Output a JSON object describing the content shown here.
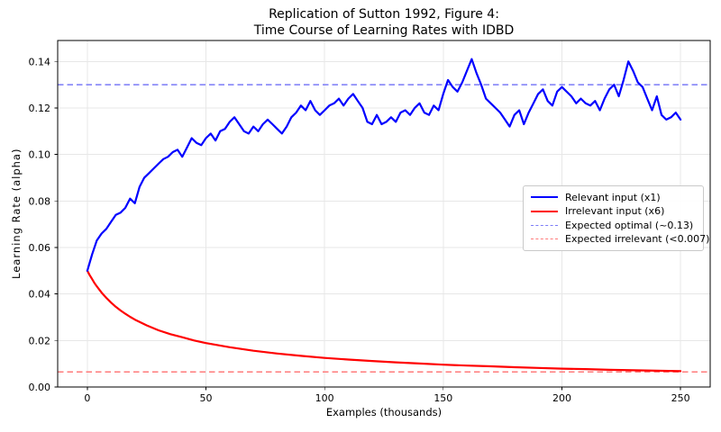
{
  "figure": {
    "title": "Replication of Sutton 1992, Figure 4:\nTime Course of Learning Rates with IDBD",
    "xlabel": "Examples (thousands)",
    "ylabel": "Learning Rate (alpha)"
  },
  "chart_data": {
    "type": "line",
    "title": "Replication of Sutton 1992, Figure 4: Time Course of Learning Rates with IDBD",
    "xlabel": "Examples (thousands)",
    "ylabel": "Learning Rate (alpha)",
    "xlim": [
      -12.5,
      262.5
    ],
    "ylim": [
      0,
      0.149
    ],
    "x_ticks": [
      0,
      50,
      100,
      150,
      200,
      250
    ],
    "y_ticks": [
      0.0,
      0.02,
      0.04,
      0.06,
      0.08,
      0.1,
      0.12,
      0.14
    ],
    "grid": true,
    "legend_position": "center right",
    "colors": {
      "grid": "#e7e7e7",
      "spine": "#000000",
      "relevant": "#0000ff",
      "irrelevant": "#ff0000",
      "expected_optimal": "#7b7bf7",
      "expected_irrelevant": "#ff7b7b"
    },
    "series": [
      {
        "name": "Relevant input (x1)",
        "color": "#0000ff",
        "style": "solid",
        "width": 2.2,
        "x": [
          0,
          2,
          4,
          6,
          8,
          10,
          12,
          14,
          16,
          18,
          20,
          22,
          24,
          26,
          28,
          30,
          32,
          34,
          36,
          38,
          40,
          42,
          44,
          46,
          48,
          50,
          52,
          54,
          56,
          58,
          60,
          62,
          64,
          66,
          68,
          70,
          72,
          74,
          76,
          78,
          80,
          82,
          84,
          86,
          88,
          90,
          92,
          94,
          96,
          98,
          100,
          102,
          104,
          106,
          108,
          110,
          112,
          114,
          116,
          118,
          120,
          122,
          124,
          126,
          128,
          130,
          132,
          134,
          136,
          138,
          140,
          142,
          144,
          146,
          148,
          150,
          152,
          154,
          156,
          158,
          160,
          162,
          164,
          166,
          168,
          170,
          172,
          174,
          176,
          178,
          180,
          182,
          184,
          186,
          188,
          190,
          192,
          194,
          196,
          198,
          200,
          202,
          204,
          206,
          208,
          210,
          212,
          214,
          216,
          218,
          220,
          222,
          224,
          226,
          228,
          230,
          232,
          234,
          236,
          238,
          240,
          242,
          244,
          246,
          248,
          250
        ],
        "y": [
          0.05,
          0.057,
          0.063,
          0.066,
          0.068,
          0.071,
          0.074,
          0.075,
          0.077,
          0.081,
          0.079,
          0.086,
          0.09,
          0.092,
          0.094,
          0.096,
          0.098,
          0.099,
          0.101,
          0.102,
          0.099,
          0.103,
          0.107,
          0.105,
          0.104,
          0.107,
          0.109,
          0.106,
          0.11,
          0.111,
          0.114,
          0.116,
          0.113,
          0.11,
          0.109,
          0.112,
          0.11,
          0.113,
          0.115,
          0.113,
          0.111,
          0.109,
          0.112,
          0.116,
          0.118,
          0.121,
          0.119,
          0.123,
          0.119,
          0.117,
          0.119,
          0.121,
          0.122,
          0.124,
          0.121,
          0.124,
          0.126,
          0.123,
          0.12,
          0.114,
          0.113,
          0.117,
          0.113,
          0.114,
          0.116,
          0.114,
          0.118,
          0.119,
          0.117,
          0.12,
          0.122,
          0.118,
          0.117,
          0.121,
          0.119,
          0.126,
          0.132,
          0.129,
          0.127,
          0.131,
          0.136,
          0.141,
          0.135,
          0.13,
          0.124,
          0.122,
          0.12,
          0.118,
          0.115,
          0.112,
          0.117,
          0.119,
          0.113,
          0.118,
          0.122,
          0.126,
          0.128,
          0.123,
          0.121,
          0.127,
          0.129,
          0.127,
          0.125,
          0.122,
          0.124,
          0.122,
          0.121,
          0.123,
          0.119,
          0.124,
          0.128,
          0.13,
          0.125,
          0.132,
          0.14,
          0.136,
          0.131,
          0.129,
          0.124,
          0.119,
          0.125,
          0.117,
          0.115,
          0.116,
          0.118,
          0.115
        ]
      },
      {
        "name": "Irrelevant input (x6)",
        "color": "#ff0000",
        "style": "solid",
        "width": 2.2,
        "x": [
          0,
          1,
          2,
          3,
          4,
          5,
          6,
          8,
          10,
          12,
          14,
          16,
          18,
          20,
          25,
          30,
          35,
          40,
          45,
          50,
          60,
          70,
          80,
          90,
          100,
          110,
          120,
          130,
          140,
          150,
          160,
          170,
          180,
          190,
          200,
          210,
          220,
          230,
          240,
          250
        ],
        "y": [
          0.05,
          0.0481,
          0.0464,
          0.0447,
          0.0433,
          0.0419,
          0.0406,
          0.0383,
          0.0363,
          0.0345,
          0.0329,
          0.0315,
          0.0302,
          0.029,
          0.0265,
          0.0244,
          0.0227,
          0.0214,
          0.02,
          0.0189,
          0.0171,
          0.0156,
          0.0144,
          0.0134,
          0.0125,
          0.0118,
          0.0112,
          0.0106,
          0.0101,
          0.0096,
          0.0092,
          0.0089,
          0.0085,
          0.0082,
          0.0079,
          0.0077,
          0.0074,
          0.0072,
          0.007,
          0.0068
        ]
      },
      {
        "name": "Expected optimal (~0.13)",
        "color": "#7b7bf7",
        "style": "dashed",
        "width": 1.5,
        "const_y": 0.13
      },
      {
        "name": "Expected irrelevant (<0.007)",
        "color": "#ff7b7b",
        "style": "dashed",
        "width": 1.5,
        "const_y": 0.0065
      }
    ]
  }
}
